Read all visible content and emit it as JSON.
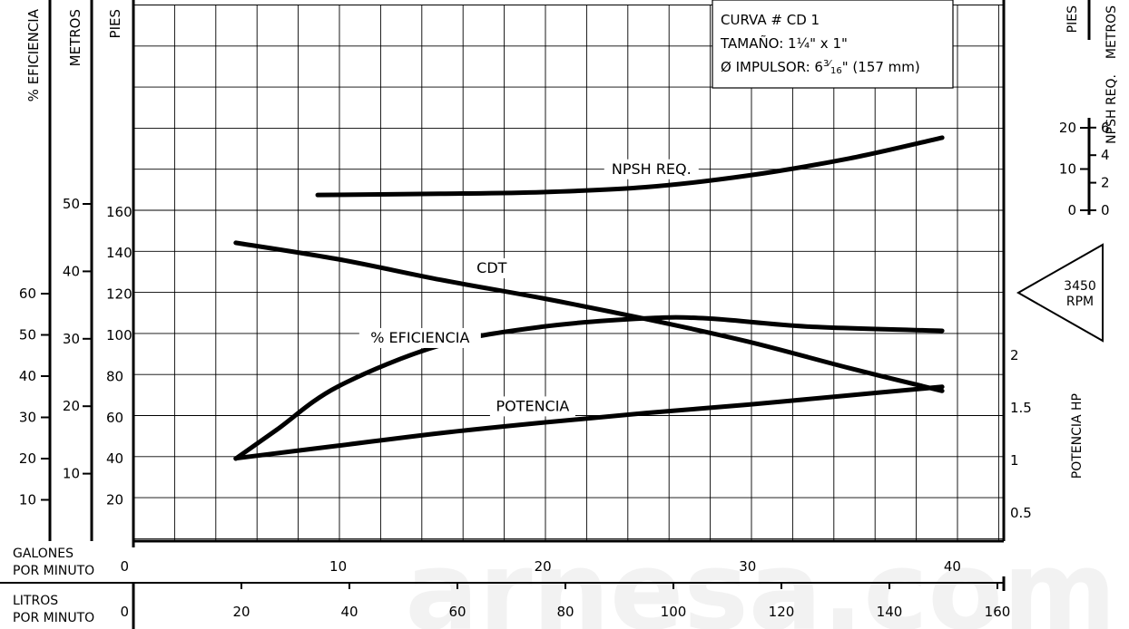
{
  "chart_data": {
    "type": "line",
    "curve_box": {
      "line1": "CURVA # CD 1",
      "line2": "TAMAÑO: 1¼\" x 1\"",
      "line3_prefix": "Ø IMPULSOR: 6",
      "line3_frac_num": "3",
      "line3_frac_sep": "⁄",
      "line3_frac_den": "16",
      "line3_suffix": "\" (157 mm)"
    },
    "rpm": {
      "line1": "3450",
      "line2": "RPM"
    },
    "watermark": "arnesa.com",
    "axes": {
      "eficiencia": {
        "label": "% EFICIENCIA",
        "ticks": [
          "10",
          "20",
          "30",
          "40",
          "50",
          "60"
        ],
        "range": [
          0,
          100
        ]
      },
      "metros": {
        "label": "METROS",
        "ticks": [
          "10",
          "20",
          "30",
          "40",
          "50"
        ]
      },
      "pies": {
        "label": "PIES",
        "ticks": [
          "20",
          "40",
          "60",
          "80",
          "100",
          "120",
          "140",
          "160"
        ],
        "range": [
          0,
          260
        ]
      },
      "potencia": {
        "label": "POTENCIA HP",
        "ticks": [
          "0.5",
          "1",
          "1.5",
          "2"
        ]
      },
      "npsh_pies": {
        "label": "PIES",
        "ticks": [
          "0",
          "10",
          "20"
        ]
      },
      "npsh_metros": {
        "label": "METROS",
        "ticks": [
          "0",
          "2",
          "4",
          "6"
        ]
      },
      "npsh_label": "NPSH REQ.",
      "gpm": {
        "label_line1": "GALONES",
        "label_line2": "POR MINUTO",
        "ticks": [
          "0",
          "10",
          "20",
          "30",
          "40"
        ],
        "range": [
          0,
          42
        ]
      },
      "lpm": {
        "label_line1": "LITROS",
        "label_line2": "POR MINUTO",
        "ticks": [
          "0",
          "20",
          "40",
          "60",
          "80",
          "100",
          "120",
          "140",
          "160"
        ]
      }
    },
    "series": [
      {
        "name": "CDT",
        "axis": "pies",
        "x": [
          5,
          10,
          15,
          20,
          25,
          30,
          35,
          39.5
        ],
        "y": [
          145,
          137,
          127,
          118,
          108,
          97,
          84,
          73
        ]
      },
      {
        "name": "% EFICIENCIA",
        "axis": "eficiencia",
        "x": [
          5,
          7,
          10,
          15,
          20,
          25,
          28,
          33,
          39.5
        ],
        "y": [
          20,
          27,
          37.5,
          47.5,
          52,
          54,
          54,
          52,
          51
        ]
      },
      {
        "name": "POTENCIA",
        "axis": "potencia",
        "x": [
          5,
          10,
          15,
          20,
          25,
          30,
          35,
          39.5
        ],
        "y": [
          1.02,
          1.14,
          1.26,
          1.36,
          1.45,
          1.53,
          1.62,
          1.7
        ]
      },
      {
        "name": "NPSH REQ.",
        "axis": "npsh_pies",
        "x": [
          9,
          15,
          20,
          25,
          30,
          35,
          39.5
        ],
        "y": [
          3.7,
          4.0,
          4.4,
          5.6,
          8.4,
          12.6,
          17.6
        ]
      }
    ]
  }
}
